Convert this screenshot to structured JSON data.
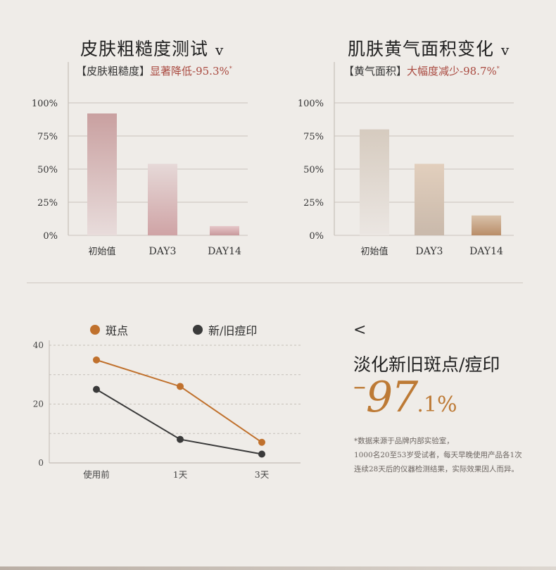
{
  "left_panel": {
    "title": "皮肤粗糙度测试",
    "chevron": "v",
    "subtitle_prefix": "【皮肤粗糙度】",
    "subtitle_highlight": "显著降低-95.3%",
    "subtitle_mark": "*"
  },
  "right_panel": {
    "title": "肌肤黄气面积变化",
    "chevron": "v",
    "subtitle_prefix": "【黄气面积】",
    "subtitle_highlight": "大幅度减少-98.7%",
    "subtitle_mark": "*"
  },
  "line_panel": {
    "legend": [
      {
        "label": "斑点",
        "color": "#c0712d"
      },
      {
        "label": "新/旧痘印",
        "color": "#3a3a3a"
      }
    ]
  },
  "stat": {
    "back_arrow": "<",
    "title": "淡化新旧斑点/痘印",
    "minus": "–",
    "integer": "97",
    "decimal": ".1",
    "percent": "%",
    "note_lines": [
      "*数据来源于品牌内部实验室，",
      "1000名20至53岁受试者，每天早晚使用产品各1次",
      "连续28天后的仪器检测结果，实际效果因人而异。"
    ]
  },
  "chart_data": [
    {
      "type": "bar",
      "categories": [
        "初始值",
        "DAY3",
        "DAY14"
      ],
      "values": [
        92,
        54,
        7
      ],
      "yticks": [
        "100%",
        "75%",
        "50%",
        "25%",
        "0%"
      ],
      "ylim": [
        0,
        100
      ],
      "grid": true,
      "colors_top": [
        "#c9a0a0",
        "#e6d9d8",
        "#e6c7c9"
      ],
      "colors_bottom": [
        "#e8dcdb",
        "#cfa3a5",
        "#c9999c"
      ]
    },
    {
      "type": "bar",
      "categories": [
        "初始值",
        "DAY3",
        "DAY14"
      ],
      "values": [
        80,
        54,
        15
      ],
      "yticks": [
        "100%",
        "75%",
        "50%",
        "25%",
        "0%"
      ],
      "ylim": [
        0,
        100
      ],
      "grid": true,
      "colors_top": [
        "#d6cbbf",
        "#e2cfbd",
        "#d9c2ab"
      ],
      "colors_bottom": [
        "#ebe6e2",
        "#c9b9ab",
        "#b98d68"
      ]
    },
    {
      "type": "line",
      "categories": [
        "使用前",
        "1天",
        "3天"
      ],
      "series": [
        {
          "name": "斑点",
          "values": [
            35,
            26,
            7
          ],
          "color": "#c0712d"
        },
        {
          "name": "新/旧痘印",
          "values": [
            25,
            8,
            3
          ],
          "color": "#3a3a3a"
        }
      ],
      "yticks": [
        40,
        20,
        0
      ],
      "ylim": [
        0,
        40
      ],
      "grid": "dashed"
    }
  ]
}
